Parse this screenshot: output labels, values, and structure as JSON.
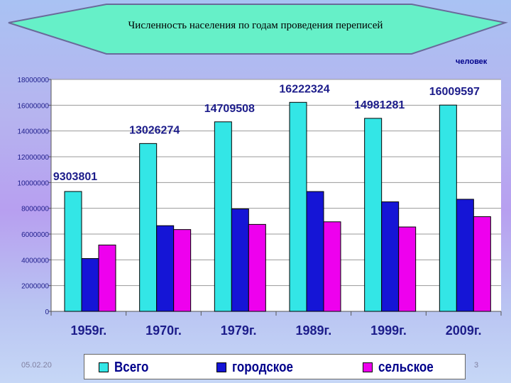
{
  "title": "Численность населения по годам проведения переписей",
  "unit_label": "человек",
  "footer": {
    "date": "05.02.20",
    "page": "3"
  },
  "colors": {
    "total": "#33e6e6",
    "urban": "#1515d6",
    "rural": "#ee00ee",
    "banner": "#66f0c8",
    "plot_bg": "#ffffff"
  },
  "chart_data": {
    "type": "bar",
    "categories": [
      "1959г.",
      "1970г.",
      "1979г.",
      "1989г.",
      "1999г.",
      "2009г."
    ],
    "series": [
      {
        "name": "Всего",
        "values": [
          9303801,
          13026274,
          14709508,
          16222324,
          14981281,
          16009597
        ]
      },
      {
        "name": "городское",
        "values": [
          4100000,
          6650000,
          7950000,
          9300000,
          8500000,
          8700000
        ]
      },
      {
        "name": "сельское",
        "values": [
          5150000,
          6350000,
          6750000,
          6950000,
          6550000,
          7350000
        ]
      }
    ],
    "data_labels": [
      "9303801",
      "13026274",
      "14709508",
      "16222324",
      "14981281",
      "16009597"
    ],
    "y_ticks": [
      "0",
      "2000000",
      "4000000",
      "6000000",
      "8000000",
      "10000000",
      "12000000",
      "14000000",
      "16000000",
      "18000000"
    ],
    "ylim": [
      0,
      18000000
    ],
    "grid": true,
    "legend_position": "bottom"
  }
}
